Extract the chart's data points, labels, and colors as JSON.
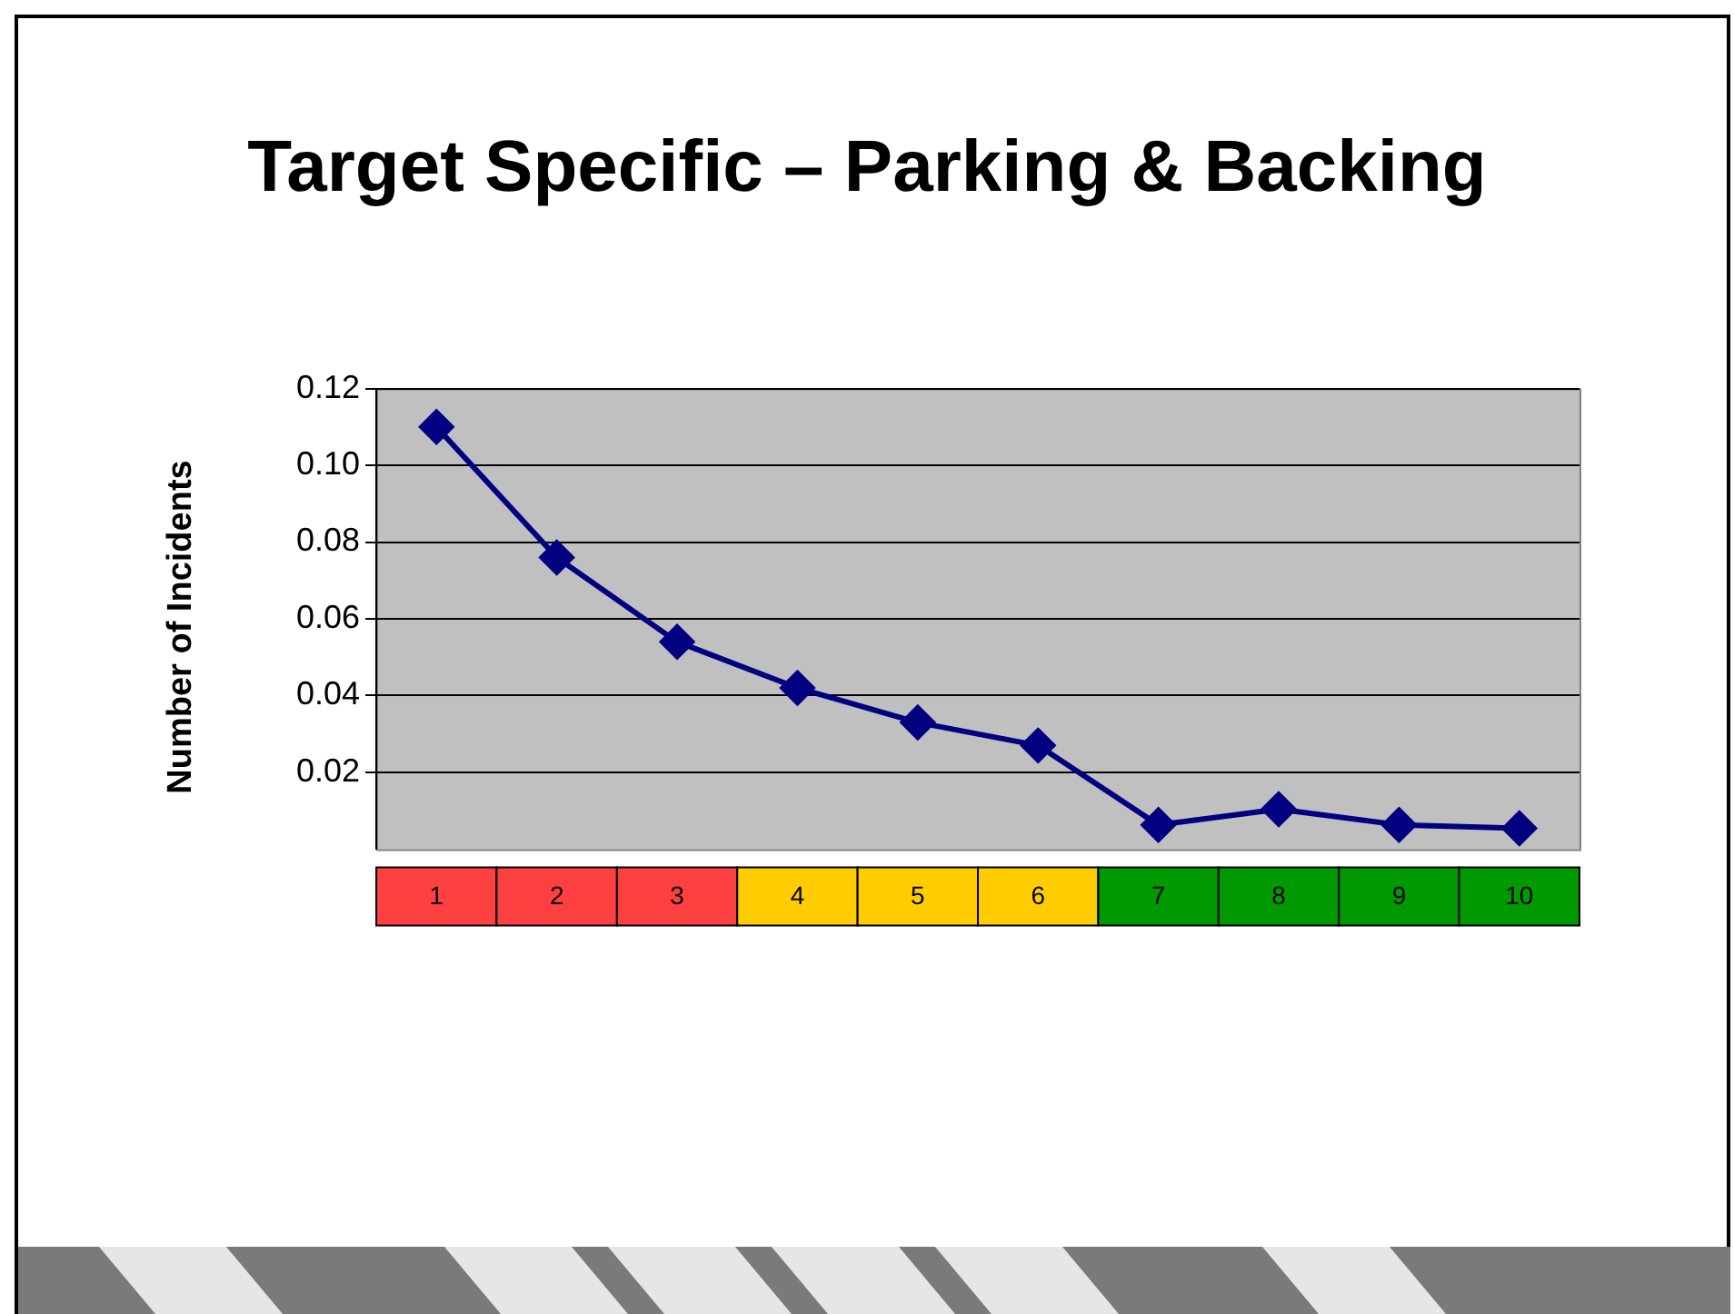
{
  "chart_data": {
    "type": "line",
    "title": "Target Specific – Parking & Backing",
    "ylabel": "Number of Incidents",
    "categories": [
      "1",
      "2",
      "3",
      "4",
      "5",
      "6",
      "7",
      "8",
      "9",
      "10"
    ],
    "series": [
      {
        "color": "#000080",
        "values": [
          0.11,
          0.076,
          0.054,
          0.042,
          0.033,
          0.027,
          0.0063,
          0.0104,
          0.0063,
          0.0054
        ]
      }
    ],
    "ylim": [
      0,
      0.12
    ],
    "yticks": [
      0.02,
      0.04,
      0.06,
      0.08,
      {
        "value": 0.1,
        "label": "0.10"
      },
      0.12
    ],
    "grid": "y",
    "legend": false,
    "marker": "diamond",
    "line_style": "solid"
  }
}
